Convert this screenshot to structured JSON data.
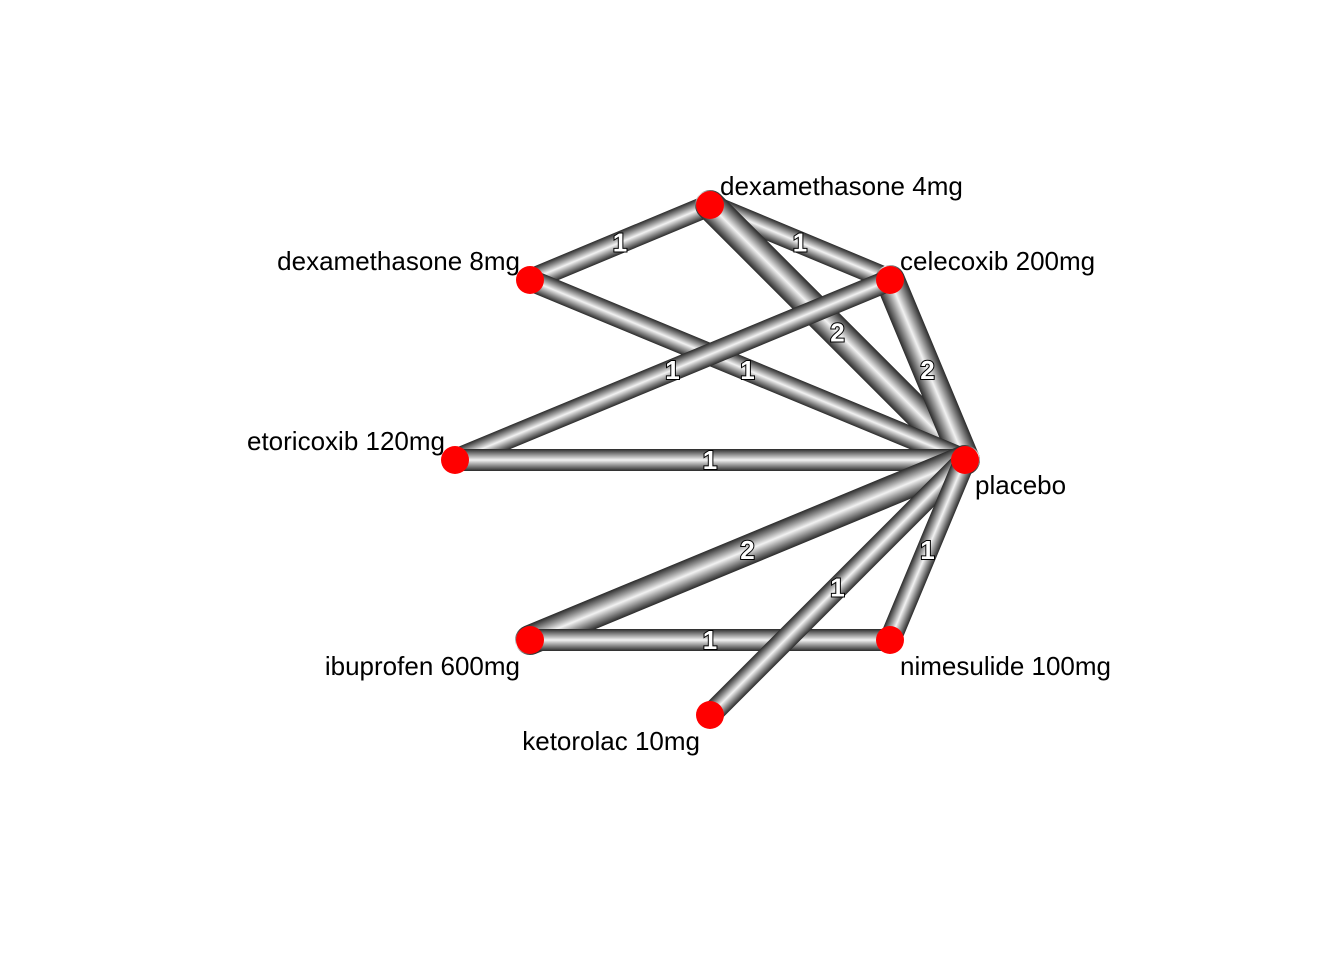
{
  "colors": {
    "node": "#ff0000",
    "edge_dark": "#2a2a2a",
    "edge_light": "#f2f2f2",
    "label": "#000000"
  },
  "nodes": [
    {
      "id": "dex4",
      "label": "dexamethasone 4mg"
    },
    {
      "id": "cele",
      "label": "celecoxib 200mg"
    },
    {
      "id": "plac",
      "label": "placebo"
    },
    {
      "id": "nime",
      "label": "nimesulide 100mg"
    },
    {
      "id": "keto",
      "label": "ketorolac 10mg"
    },
    {
      "id": "ibu",
      "label": "ibuprofen 600mg"
    },
    {
      "id": "etori",
      "label": "etoricoxib 120mg"
    },
    {
      "id": "dex8",
      "label": "dexamethasone 8mg"
    }
  ],
  "edges": [
    {
      "from": "dex8",
      "to": "dex4",
      "studies": "1"
    },
    {
      "from": "dex4",
      "to": "cele",
      "studies": "1"
    },
    {
      "from": "dex4",
      "to": "plac",
      "studies": "2"
    },
    {
      "from": "cele",
      "to": "plac",
      "studies": "2"
    },
    {
      "from": "dex8",
      "to": "plac",
      "studies": "1"
    },
    {
      "from": "etori",
      "to": "cele",
      "studies": "1"
    },
    {
      "from": "etori",
      "to": "plac",
      "studies": "1"
    },
    {
      "from": "ibu",
      "to": "plac",
      "studies": "2"
    },
    {
      "from": "ibu",
      "to": "nime",
      "studies": "1"
    },
    {
      "from": "keto",
      "to": "plac",
      "studies": "1"
    },
    {
      "from": "nime",
      "to": "plac",
      "studies": "1"
    }
  ]
}
